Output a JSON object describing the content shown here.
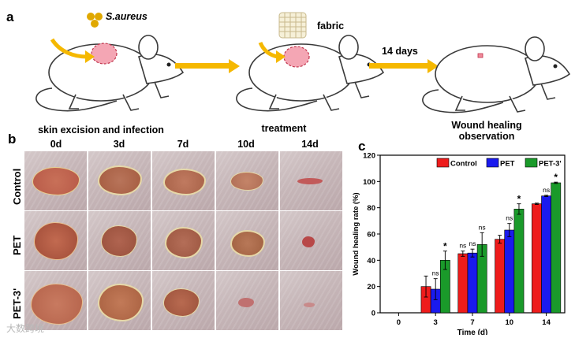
{
  "panel_a": {
    "letter": "a",
    "bacteria_label": "S.aureus",
    "fabric_label": "fabric",
    "days_label": "14 days",
    "steps": [
      "skin excision and infection",
      "treatment",
      "Wound healing observation"
    ]
  },
  "panel_b": {
    "letter": "b",
    "columns": [
      "0d",
      "3d",
      "7d",
      "10d",
      "14d"
    ],
    "rows": [
      "Control",
      "PET",
      "PET-3'"
    ]
  },
  "panel_c": {
    "letter": "c"
  },
  "watermark": "大数跨境",
  "colors": {
    "arrow": "#f5b800",
    "control": "#ee1c1c",
    "pet": "#1a1aee",
    "pet3": "#1a9a2a"
  },
  "chart_data": {
    "type": "bar",
    "xlabel": "Time (d)",
    "ylabel": "Wound healing rate (%)",
    "categories": [
      "0",
      "3",
      "7",
      "10",
      "14"
    ],
    "ylim": [
      0,
      120
    ],
    "yticks": [
      0,
      20,
      40,
      60,
      80,
      100,
      120
    ],
    "legend_position": "top-right",
    "series": [
      {
        "name": "Control",
        "color": "#ee1c1c",
        "values": [
          0,
          20,
          45,
          56,
          83
        ],
        "errors": [
          0,
          8,
          2,
          3,
          0.5
        ]
      },
      {
        "name": "PET",
        "color": "#1a1aee",
        "values": [
          0,
          18,
          45.5,
          63,
          89
        ],
        "errors": [
          0,
          8,
          3,
          5,
          0.5
        ]
      },
      {
        "name": "PET-3'",
        "color": "#1a9a2a",
        "values": [
          0,
          40,
          52,
          79,
          99
        ],
        "errors": [
          0,
          7,
          9,
          4,
          0.5
        ]
      }
    ],
    "annotations": [
      {
        "category": "3",
        "label": "ns",
        "series": "PET"
      },
      {
        "category": "3",
        "label": "*",
        "series": "PET-3'"
      },
      {
        "category": "7",
        "label": "ns",
        "series": "Control"
      },
      {
        "category": "7",
        "label": "ns",
        "series": "PET"
      },
      {
        "category": "7",
        "label": "ns",
        "series": "PET-3'"
      },
      {
        "category": "10",
        "label": "ns",
        "series": "PET"
      },
      {
        "category": "10",
        "label": "*",
        "series": "PET-3'"
      },
      {
        "category": "14",
        "label": "ns",
        "series": "PET"
      },
      {
        "category": "14",
        "label": "*",
        "series": "PET-3'"
      }
    ]
  }
}
